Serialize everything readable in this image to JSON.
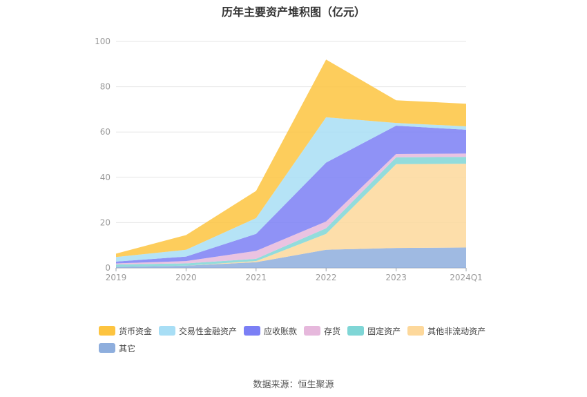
{
  "chart_data": {
    "type": "area",
    "title": "历年主要资产堆积图（亿元）",
    "stacked": true,
    "x": [
      "2019",
      "2020",
      "2021",
      "2022",
      "2023",
      "2024Q1"
    ],
    "ylim": [
      0,
      100
    ],
    "yticks": [
      0,
      20,
      40,
      60,
      80,
      100
    ],
    "grid": true,
    "legend_position": "bottom",
    "series": [
      {
        "name": "其它",
        "color": "#8eaedd",
        "values": [
          0.5,
          1.0,
          2.5,
          8.0,
          8.8,
          9.0
        ]
      },
      {
        "name": "其他非流动资产",
        "color": "#fdd89b",
        "values": [
          0.0,
          0.0,
          0.5,
          7.0,
          37.0,
          37.0
        ]
      },
      {
        "name": "固定资产",
        "color": "#7fd6d6",
        "values": [
          1.0,
          1.0,
          1.0,
          2.5,
          3.0,
          3.0
        ]
      },
      {
        "name": "存货",
        "color": "#e6b8dc",
        "values": [
          0.5,
          1.0,
          3.5,
          3.0,
          1.5,
          1.5
        ]
      },
      {
        "name": "应收账款",
        "color": "#7b7ff5",
        "values": [
          0.8,
          2.0,
          7.5,
          26.0,
          12.5,
          10.5
        ]
      },
      {
        "name": "交易性金融资产",
        "color": "#a8def5",
        "values": [
          2.0,
          3.0,
          7.0,
          20.0,
          1.2,
          1.5
        ]
      },
      {
        "name": "货币资金",
        "color": "#fdc440",
        "values": [
          1.5,
          6.5,
          12.0,
          25.5,
          10.0,
          10.0
        ]
      }
    ]
  },
  "legend": [
    {
      "label": "货币资金",
      "color": "#fdc440"
    },
    {
      "label": "交易性金融资产",
      "color": "#a8def5"
    },
    {
      "label": "应收账款",
      "color": "#7b7ff5"
    },
    {
      "label": "存货",
      "color": "#e6b8dc"
    },
    {
      "label": "固定资产",
      "color": "#7fd6d6"
    },
    {
      "label": "其他非流动资产",
      "color": "#fdd89b"
    },
    {
      "label": "其它",
      "color": "#8eaedd"
    }
  ],
  "source": "数据来源：恒生聚源"
}
